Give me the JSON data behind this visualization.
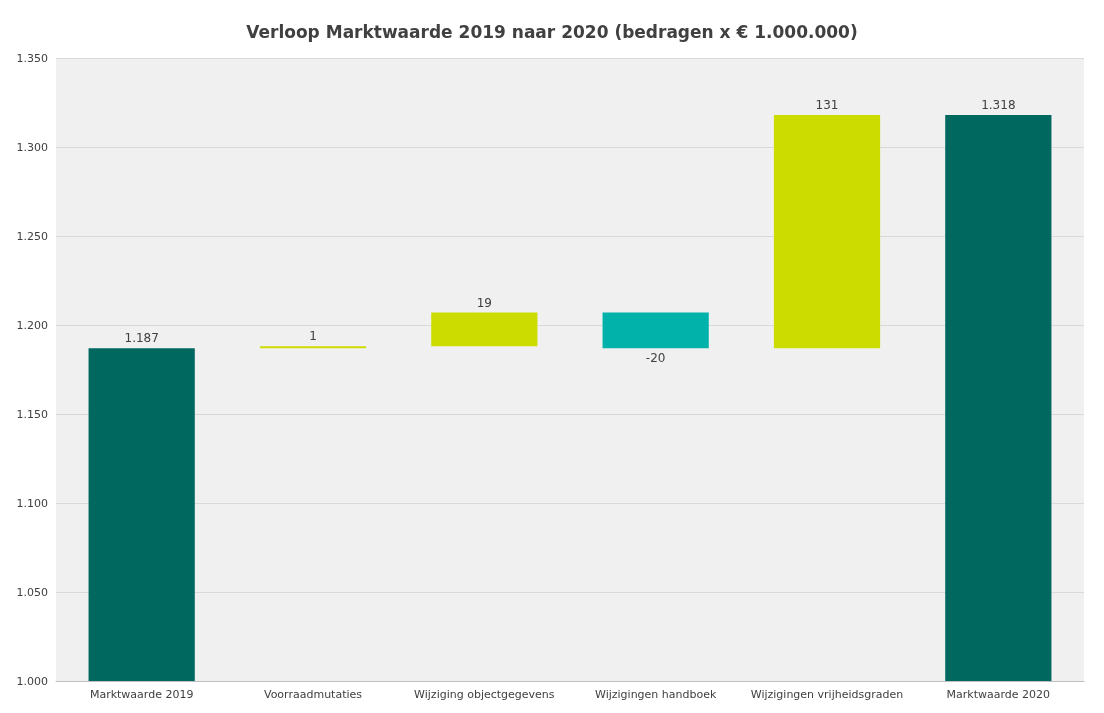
{
  "chart_data": {
    "type": "bar",
    "title": "Verloop Marktwaarde 2019 naar 2020 (bedragen x € 1.000.000)",
    "categories": [
      "Marktwaarde 2019",
      "Voorraadmutaties",
      "Wijziging objectgegevens",
      "Wijzigingen handboek",
      "Wijzigingen vrijheidsgraden",
      "Marktwaarde 2020"
    ],
    "values": [
      1187,
      1,
      19,
      -20,
      131,
      1318
    ],
    "base": [
      null,
      1187,
      1188,
      1207,
      1187,
      null
    ],
    "colors": [
      "#00685e",
      "#cddc00",
      "#cddc00",
      "#00b2a9",
      "#cddc00",
      "#00685e"
    ],
    "value_labels": [
      "1.187",
      "1",
      "19",
      "-20",
      "131",
      "1.318"
    ],
    "ylim": [
      1000,
      1350
    ],
    "yticks": [
      {
        "value": 1000,
        "label": "1.000"
      },
      {
        "value": 1050,
        "label": "1.050"
      },
      {
        "value": 1100,
        "label": "1.100"
      },
      {
        "value": 1150,
        "label": "1.150"
      },
      {
        "value": 1200,
        "label": "1.200"
      },
      {
        "value": 1250,
        "label": "1.250"
      },
      {
        "value": 1300,
        "label": "1.300"
      },
      {
        "value": 1350,
        "label": "1.350"
      }
    ],
    "grid": "y"
  }
}
